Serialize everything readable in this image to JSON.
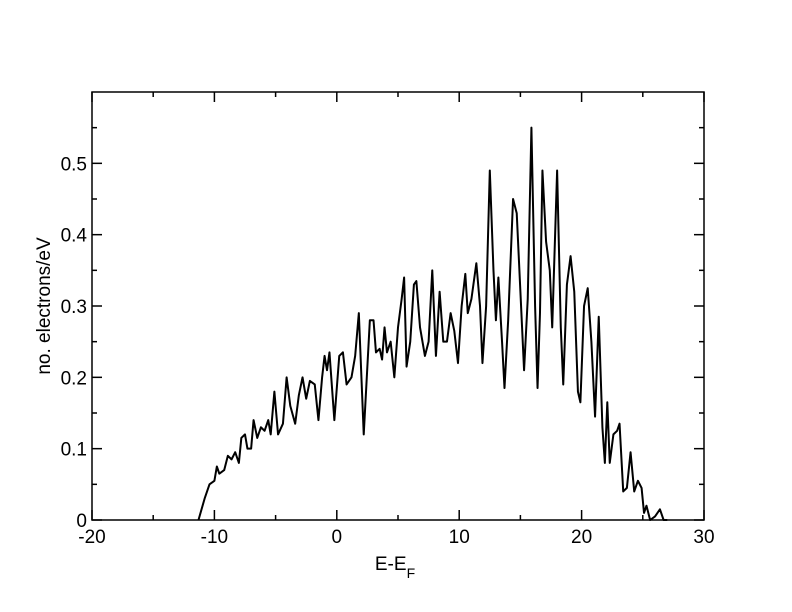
{
  "chart_data": {
    "type": "line",
    "x_label": {
      "main": "E-E",
      "subscript": "F"
    },
    "y_label": "no. electrons/eV",
    "xlim": [
      -20,
      30
    ],
    "xticks": [
      -20,
      -10,
      0,
      10,
      20,
      30
    ],
    "xminorticks": [
      -15,
      -5,
      5,
      15,
      25
    ],
    "ylim": [
      0,
      0.6
    ],
    "yticks": [
      0,
      0.1,
      0.2,
      0.3,
      0.4,
      0.5
    ],
    "yminorticks": [
      0.05,
      0.15,
      0.25,
      0.35,
      0.45,
      0.55
    ],
    "grid": false,
    "color": "#000000",
    "x": [
      -11.3,
      -10.8,
      -10.4,
      -10,
      -9.8,
      -9.6,
      -9.2,
      -8.9,
      -8.6,
      -8.3,
      -8,
      -7.8,
      -7.5,
      -7.3,
      -7,
      -6.8,
      -6.5,
      -6.2,
      -5.9,
      -5.6,
      -5.4,
      -5.1,
      -4.8,
      -4.4,
      -4.1,
      -3.8,
      -3.4,
      -3.1,
      -2.8,
      -2.5,
      -2.2,
      -1.8,
      -1.5,
      -1.2,
      -1,
      -0.8,
      -0.6,
      -0.2,
      0.2,
      0.5,
      0.8,
      1.2,
      1.5,
      1.8,
      2.2,
      2.7,
      3,
      3.2,
      3.5,
      3.7,
      3.9,
      4.1,
      4.4,
      4.7,
      5,
      5.3,
      5.5,
      5.7,
      6,
      6.3,
      6.5,
      6.8,
      7.2,
      7.5,
      7.8,
      8.1,
      8.4,
      8.7,
      9,
      9.3,
      9.6,
      9.9,
      10.2,
      10.5,
      10.7,
      11,
      11.4,
      11.7,
      11.9,
      12.2,
      12.5,
      12.8,
      13,
      13.2,
      13.5,
      13.7,
      14,
      14.4,
      14.7,
      15,
      15.3,
      15.6,
      15.9,
      16.2,
      16.4,
      16.6,
      16.8,
      17.1,
      17.4,
      17.6,
      17.8,
      18,
      18.3,
      18.5,
      18.8,
      19.1,
      19.4,
      19.7,
      19.9,
      20.2,
      20.5,
      20.8,
      21.1,
      21.4,
      21.7,
      21.9,
      22.1,
      22.3,
      22.6,
      22.9,
      23.1,
      23.4,
      23.7,
      24,
      24.3,
      24.6,
      24.9,
      25.1,
      25.3,
      25.6,
      26,
      26.4,
      26.7,
      27
    ],
    "values": [
      0,
      0.03,
      0.05,
      0.055,
      0.075,
      0.065,
      0.07,
      0.09,
      0.085,
      0.095,
      0.08,
      0.115,
      0.12,
      0.1,
      0.1,
      0.14,
      0.115,
      0.13,
      0.125,
      0.14,
      0.12,
      0.18,
      0.12,
      0.135,
      0.2,
      0.16,
      0.135,
      0.175,
      0.2,
      0.17,
      0.195,
      0.19,
      0.14,
      0.2,
      0.23,
      0.21,
      0.235,
      0.14,
      0.23,
      0.235,
      0.19,
      0.2,
      0.23,
      0.29,
      0.12,
      0.28,
      0.28,
      0.235,
      0.24,
      0.225,
      0.27,
      0.235,
      0.25,
      0.2,
      0.27,
      0.31,
      0.34,
      0.215,
      0.25,
      0.33,
      0.335,
      0.27,
      0.23,
      0.25,
      0.35,
      0.23,
      0.32,
      0.25,
      0.25,
      0.29,
      0.265,
      0.22,
      0.3,
      0.345,
      0.29,
      0.31,
      0.36,
      0.3,
      0.22,
      0.3,
      0.49,
      0.35,
      0.28,
      0.34,
      0.25,
      0.185,
      0.28,
      0.45,
      0.43,
      0.32,
      0.21,
      0.31,
      0.55,
      0.3,
      0.185,
      0.29,
      0.49,
      0.39,
      0.35,
      0.27,
      0.38,
      0.49,
      0.27,
      0.19,
      0.33,
      0.37,
      0.32,
      0.18,
      0.165,
      0.3,
      0.325,
      0.25,
      0.145,
      0.285,
      0.13,
      0.08,
      0.165,
      0.08,
      0.12,
      0.125,
      0.135,
      0.04,
      0.045,
      0.095,
      0.04,
      0.055,
      0.045,
      0.01,
      0.02,
      0,
      0.005,
      0.015,
      0,
      0
    ]
  }
}
